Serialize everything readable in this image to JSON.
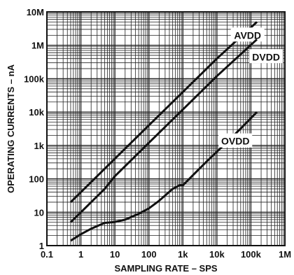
{
  "chart_data": {
    "type": "line",
    "title": "",
    "xlabel": "SAMPLING RATE – SPS",
    "ylabel": "OPERATING CURRENTS – nA",
    "x_scale": "log",
    "y_scale": "log",
    "xlim": [
      0.1,
      1000000
    ],
    "ylim": [
      1,
      10000000
    ],
    "x_ticks": [
      {
        "value": 0.1,
        "label": "0.1"
      },
      {
        "value": 1,
        "label": "1"
      },
      {
        "value": 10,
        "label": "10"
      },
      {
        "value": 100,
        "label": "100"
      },
      {
        "value": 1000,
        "label": "1k"
      },
      {
        "value": 10000,
        "label": "10k"
      },
      {
        "value": 100000,
        "label": "100k"
      },
      {
        "value": 1000000,
        "label": "1M"
      }
    ],
    "y_ticks": [
      {
        "value": 1,
        "label": "1"
      },
      {
        "value": 10,
        "label": "10"
      },
      {
        "value": 100,
        "label": "100"
      },
      {
        "value": 1000,
        "label": "1k"
      },
      {
        "value": 10000,
        "label": "10k"
      },
      {
        "value": 100000,
        "label": "100k"
      },
      {
        "value": 1000000,
        "label": "1M"
      },
      {
        "value": 10000000,
        "label": "10M"
      }
    ],
    "grid": true,
    "series": [
      {
        "name": "AVDD",
        "x": [
          0.5,
          1,
          5,
          10,
          100,
          1000,
          10000,
          150000
        ],
        "y": [
          20,
          40,
          200,
          400,
          4000,
          40000,
          400000,
          5000000
        ]
      },
      {
        "name": "DVDD",
        "x": [
          0.5,
          1,
          5,
          10,
          100,
          1000,
          10000,
          150000
        ],
        "y": [
          5,
          10,
          50,
          120,
          1200,
          12000,
          120000,
          1500000
        ]
      },
      {
        "name": "OVDD",
        "x": [
          0.5,
          1,
          2,
          5,
          10,
          20,
          50,
          100,
          200,
          500,
          800,
          1000,
          2000,
          5000,
          10000,
          50000,
          150000
        ],
        "y": [
          1.4,
          2.2,
          3.2,
          4.8,
          5.1,
          6,
          9,
          13,
          22,
          50,
          64,
          64,
          130,
          330,
          650,
          3200,
          10000
        ]
      }
    ]
  }
}
